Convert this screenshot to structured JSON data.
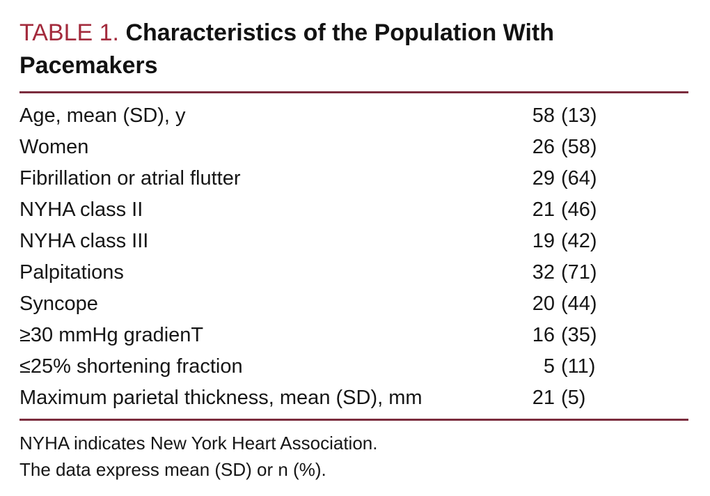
{
  "colors": {
    "accent_label": "#a32a3c",
    "rule": "#7b2c3d",
    "text": "#161616"
  },
  "table": {
    "label": "TABLE 1.",
    "title": "Characteristics of the Population With Pacemakers",
    "rows": [
      {
        "characteristic": "Age, mean (SD), y",
        "n": "58",
        "paren": "(13)"
      },
      {
        "characteristic": "Women",
        "n": "26",
        "paren": "(58)"
      },
      {
        "characteristic": "Fibrillation or atrial flutter",
        "n": "29",
        "paren": "(64)"
      },
      {
        "characteristic": "NYHA class II",
        "n": "21",
        "paren": "(46)"
      },
      {
        "characteristic": "NYHA class III",
        "n": "19",
        "paren": "(42)"
      },
      {
        "characteristic": "Palpitations",
        "n": "32",
        "paren": "(71)"
      },
      {
        "characteristic": "Syncope",
        "n": "20",
        "paren": "(44)"
      },
      {
        "characteristic": "≥30 mmHg gradienT",
        "n": "16",
        "paren": "(35)"
      },
      {
        "characteristic": "≤25% shortening fraction",
        "n": "5",
        "paren": "(11)"
      },
      {
        "characteristic": "Maximum parietal thickness, mean (SD), mm",
        "n": "21",
        "paren": "(5)"
      }
    ],
    "footnotes": [
      "NYHA indicates New York Heart Association.",
      "The data express mean (SD) or n (%)."
    ]
  }
}
